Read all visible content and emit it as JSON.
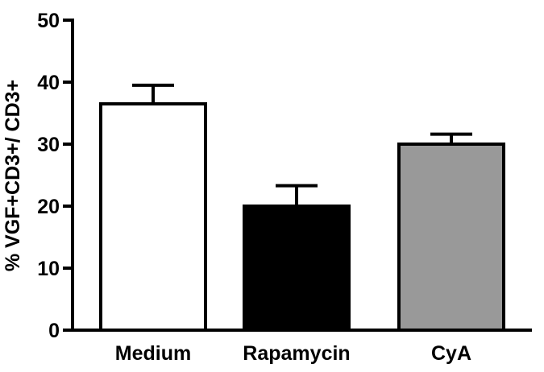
{
  "chart_data": {
    "type": "bar",
    "title": "",
    "xlabel": "",
    "ylabel": "% VGF+CD3+/ CD3+",
    "ylim": [
      0,
      50
    ],
    "yticks": [
      0,
      10,
      20,
      30,
      40,
      50
    ],
    "grid": false,
    "categories": [
      "Medium",
      "Rapamycin",
      "CyA"
    ],
    "values": [
      36.5,
      20.0,
      30.0
    ],
    "errors": [
      3.0,
      3.3,
      1.6
    ],
    "colors": [
      "#ffffff",
      "#000000",
      "#999999"
    ],
    "edge_color": "#000000"
  }
}
